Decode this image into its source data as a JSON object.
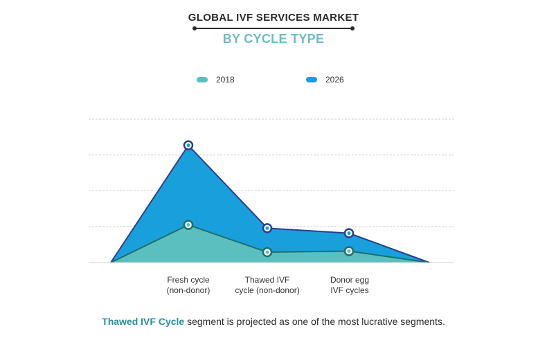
{
  "header": {
    "title": "GLOBAL IVF SERVICES MARKET",
    "subtitle": "BY CYCLE TYPE"
  },
  "legend": [
    {
      "label": "2018",
      "color": "#5bbfbf"
    },
    {
      "label": "2026",
      "color": "#199fdc"
    }
  ],
  "chart_data": {
    "type": "area",
    "categories": [
      "Fresh cycle\n(non-donor)",
      "Thawed IVF\ncycle (non-donor)",
      "Donor egg\nIVF cycles"
    ],
    "x": [
      0,
      1,
      2,
      3,
      4
    ],
    "series": [
      {
        "name": "2018",
        "values": [
          0,
          1.05,
          0.29,
          0.32,
          0
        ],
        "color": "#5bbfbf",
        "line_color": "#1e6f6a"
      },
      {
        "name": "2026",
        "values": [
          0,
          3.27,
          0.96,
          0.82,
          0
        ],
        "color": "#199fdc",
        "line_color": "#2a3f8f"
      }
    ],
    "ylim": [
      0,
      4
    ],
    "grid": true,
    "legend_position": "top-center"
  },
  "footnote": {
    "highlight": "Thawed IVF Cycle",
    "rest": " segment is projected as one of the most lucrative segments."
  }
}
